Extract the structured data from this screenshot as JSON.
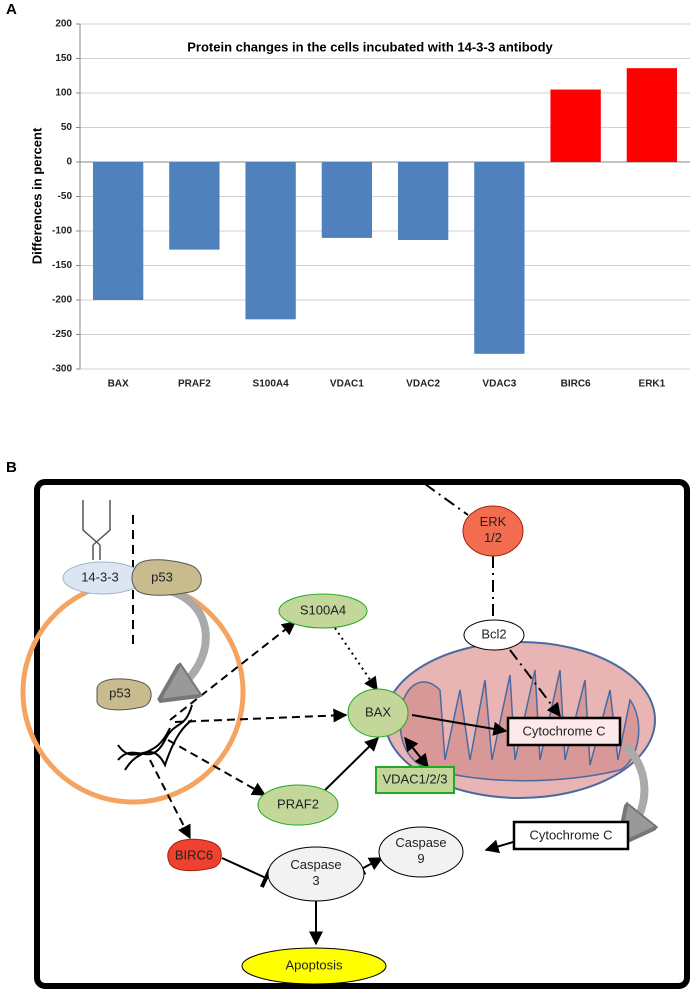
{
  "panel_a_label": "A",
  "chart_data": {
    "type": "bar",
    "title": "Protein changes in the cells incubated with 14-3-3 antibody",
    "y_label": "Differences in percent",
    "categories": [
      "BAX",
      "PRAF2",
      "S100A4",
      "VDAC1",
      "VDAC2",
      "VDAC3",
      "BIRC6",
      "ERK1"
    ],
    "values": [
      -200,
      -127,
      -228,
      -110,
      -113,
      -278,
      105,
      136
    ],
    "colors": [
      "#4f81bd",
      "#4f81bd",
      "#4f81bd",
      "#4f81bd",
      "#4f81bd",
      "#4f81bd",
      "#ff0000",
      "#ff0000"
    ],
    "ylim": [
      -300,
      200
    ],
    "yticks": [
      -300,
      -250,
      -200,
      -150,
      -100,
      -50,
      0,
      50,
      100,
      150,
      200
    ],
    "grid": true
  },
  "panel_b_label": "B",
  "diagram": {
    "antibody_target": "14-3-3",
    "p53_cytoplasm": "p53",
    "p53_nucleus": "p53",
    "s100a4": "S100A4",
    "bax": "BAX",
    "praf2": "PRAF2",
    "vdac": "VDAC1/2/3",
    "erk": [
      "ERK",
      "1/2"
    ],
    "bcl2": "Bcl2",
    "cytochrome_c_mito": "Cytochrome C",
    "cytochrome_c_cyto": "Cytochrome C",
    "caspase9": [
      "Caspase",
      "9"
    ],
    "birc6": "BIRC6",
    "caspase3": [
      "Caspase",
      "3"
    ],
    "apoptosis": "Apoptosis"
  }
}
